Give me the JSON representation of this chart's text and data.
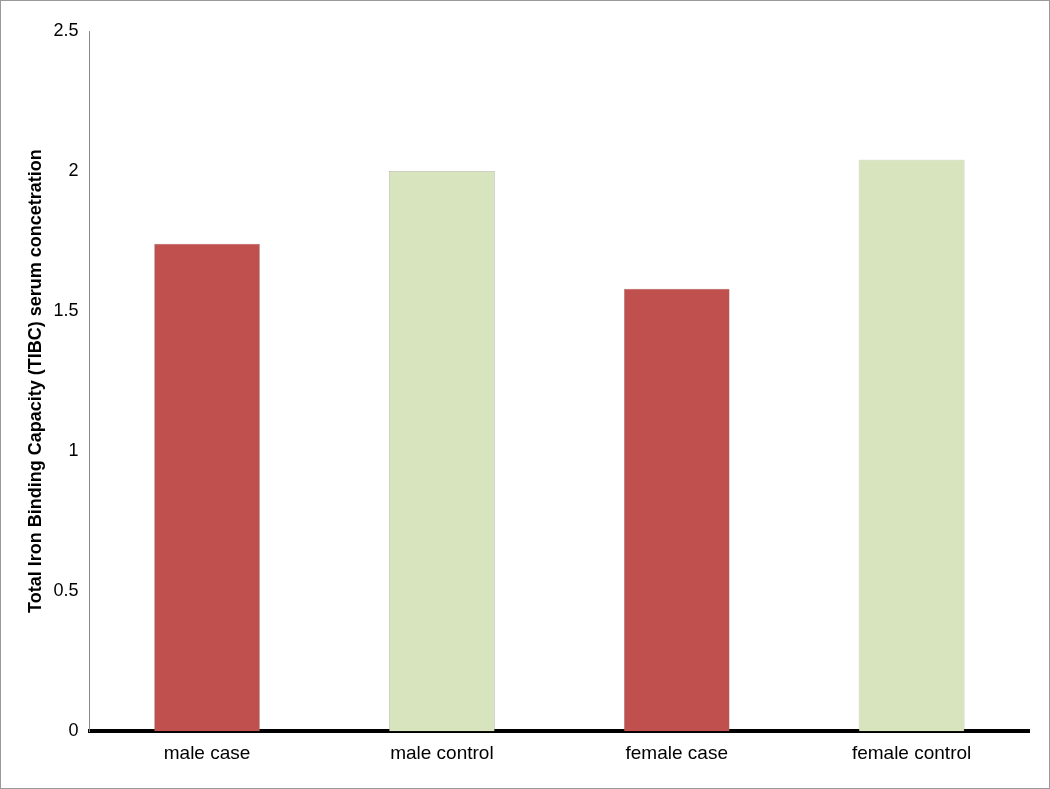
{
  "chart_data": {
    "type": "bar",
    "ylabel": "Total Iron Binding Capacity (TIBC) serum concetration",
    "categories": [
      "male case",
      "male control",
      "female case",
      "female control"
    ],
    "values": [
      1.74,
      2.0,
      1.58,
      2.04
    ],
    "colors": [
      "#c0504d",
      "#d7e4bd",
      "#c0504d",
      "#d7e4bd"
    ],
    "ylim": [
      0,
      2.5
    ],
    "yticks": [
      0,
      0.5,
      1,
      1.5,
      2,
      2.5
    ],
    "grid": false
  }
}
